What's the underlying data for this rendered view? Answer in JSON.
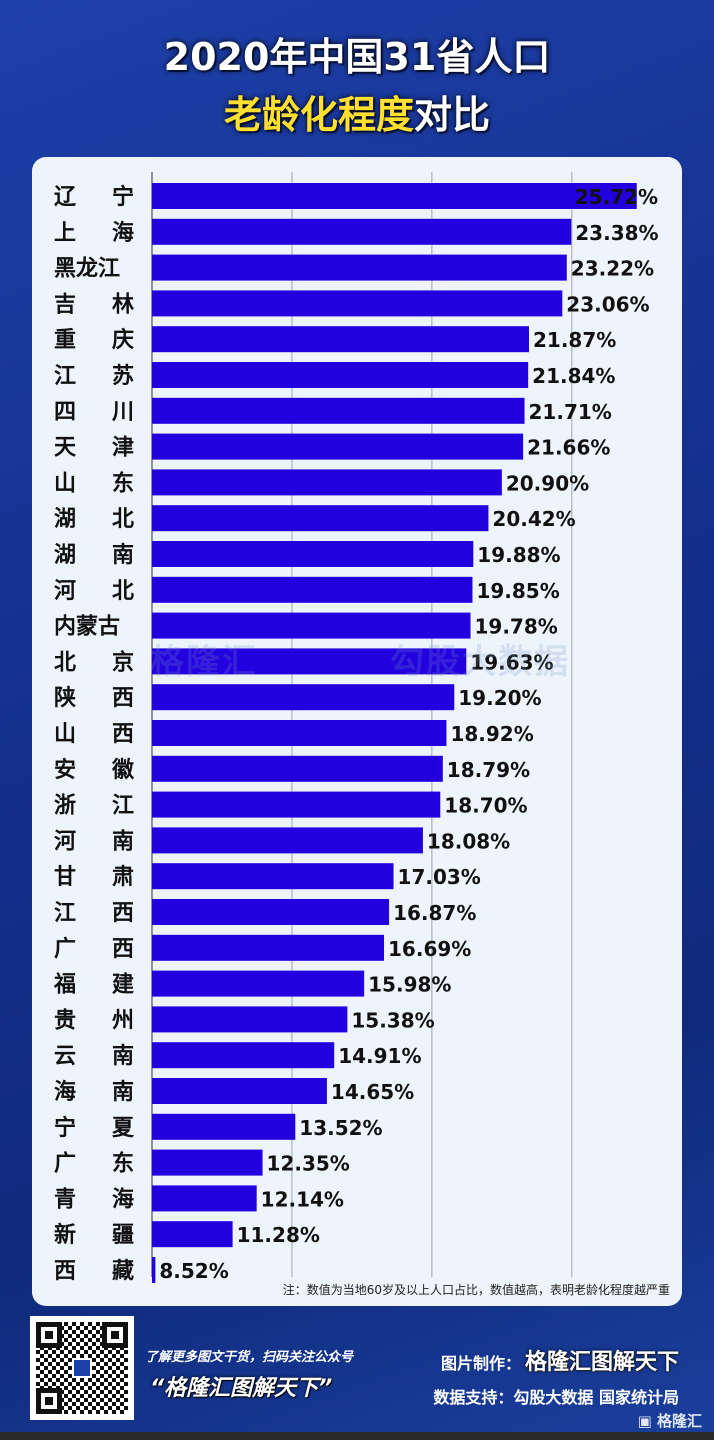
{
  "title": {
    "line1": "2020年中国31省人口",
    "line2_highlight": "老龄化程度",
    "line2_rest": "对比"
  },
  "colors": {
    "bar": "#2300de",
    "highlight": "#ffe030"
  },
  "chart_data": {
    "type": "bar",
    "orientation": "horizontal",
    "title": "2020年中国31省人口老龄化程度对比",
    "categories": [
      "辽宁",
      "上海",
      "黑龙江",
      "吉林",
      "重庆",
      "江苏",
      "四川",
      "天津",
      "山东",
      "湖北",
      "湖南",
      "河北",
      "内蒙古",
      "北京",
      "陕西",
      "山西",
      "安徽",
      "浙江",
      "河南",
      "甘肃",
      "江西",
      "广西",
      "福建",
      "贵州",
      "云南",
      "海南",
      "宁夏",
      "广东",
      "青海",
      "新疆",
      "西藏"
    ],
    "values": [
      25.72,
      23.38,
      23.22,
      23.06,
      21.87,
      21.84,
      21.71,
      21.66,
      20.9,
      20.42,
      19.88,
      19.85,
      19.78,
      19.63,
      19.2,
      18.92,
      18.79,
      18.7,
      18.08,
      17.03,
      16.87,
      16.69,
      15.98,
      15.38,
      14.91,
      14.65,
      13.52,
      12.35,
      12.14,
      11.28,
      8.52
    ],
    "labels": [
      "25.72%",
      "23.38%",
      "23.22%",
      "23.06%",
      "21.87%",
      "21.84%",
      "21.71%",
      "21.66%",
      "20.90%",
      "20.42%",
      "19.88%",
      "19.85%",
      "19.78%",
      "19.63%",
      "19.20%",
      "18.92%",
      "18.79%",
      "18.70%",
      "18.08%",
      "17.03%",
      "16.87%",
      "16.69%",
      "15.98%",
      "15.38%",
      "14.91%",
      "14.65%",
      "13.52%",
      "12.35%",
      "12.14%",
      "11.28%",
      "8.52%"
    ],
    "unit": "%",
    "xlim": [
      8.4,
      25.8
    ],
    "grid": true,
    "grid_step": 5
  },
  "note": "注：数值为当地60岁及以上人口占比，数值越高，表明老龄化程度越严重",
  "watermark": {
    "left": "格隆汇",
    "right": "勾股大数据"
  },
  "footer": {
    "promo": "了解更多图文干货，扫码关注公众号",
    "account": "“格隆汇图解天下”",
    "maker_label": "图片制作：",
    "maker": "格隆汇图解天下",
    "source": "数据支持：勾股大数据 国家统计局",
    "logo": "格隆汇"
  }
}
